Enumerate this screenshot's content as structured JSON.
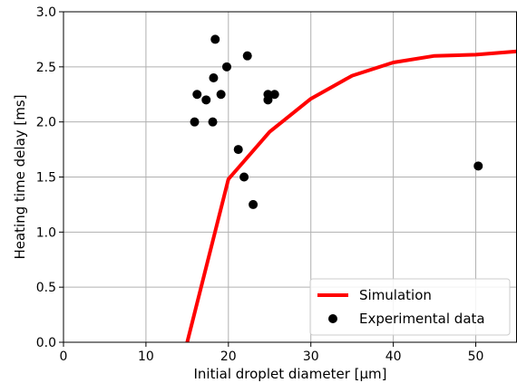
{
  "chart_data": {
    "type": "scatter",
    "xlabel": "Initial droplet diameter [μm]",
    "ylabel": "Heating time delay [ms]",
    "xlim": [
      0,
      55
    ],
    "ylim": [
      0.0,
      3.0
    ],
    "xticks": [
      0,
      10,
      20,
      30,
      40,
      50
    ],
    "xtick_labels": [
      "0",
      "10",
      "20",
      "30",
      "40",
      "50"
    ],
    "yticks": [
      0.0,
      0.5,
      1.0,
      1.5,
      2.0,
      2.5,
      3.0
    ],
    "ytick_labels": [
      "0.0",
      "0.5",
      "1.0",
      "1.5",
      "2.0",
      "2.5",
      "3.0"
    ],
    "grid": true,
    "legend_position": "bottom-right",
    "series": [
      {
        "name": "Simulation",
        "kind": "line",
        "color": "#ff0000",
        "x": [
          15,
          20,
          25,
          30,
          35,
          40,
          45,
          50,
          55
        ],
        "y": [
          0.0,
          1.48,
          1.91,
          2.21,
          2.42,
          2.54,
          2.6,
          2.61,
          2.64
        ]
      },
      {
        "name": "Experimental data",
        "kind": "scatter",
        "color": "#000000",
        "x": [
          15.9,
          16.2,
          17.3,
          18.1,
          18.2,
          18.4,
          19.1,
          19.8,
          21.2,
          21.9,
          22.3,
          23.0,
          24.8,
          24.8,
          25.6,
          50.3
        ],
        "y": [
          2.0,
          2.25,
          2.2,
          2.0,
          2.4,
          2.75,
          2.25,
          2.5,
          1.75,
          1.5,
          2.6,
          1.25,
          2.25,
          2.2,
          2.25,
          1.6
        ]
      }
    ]
  }
}
